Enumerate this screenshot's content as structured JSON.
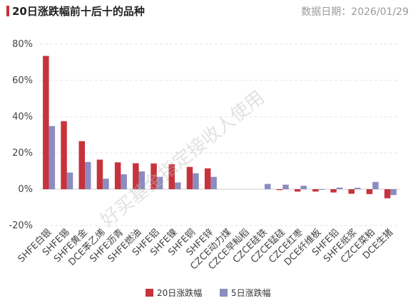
{
  "header": {
    "title": "20日涨跌幅前十后十的品种",
    "date_text": "数据日期：2026/01/29"
  },
  "watermark": "好买基金指定接收人使用",
  "colors": {
    "series_20d": "#c8323c",
    "series_5d": "#8c8cc0",
    "title_accent": "#c8323c"
  },
  "chart_data": {
    "type": "bar",
    "title": "20日涨跌幅前十后十的品种",
    "categories": [
      "SHFE白银",
      "SHFE锡",
      "SHFE黄金",
      "DCE苯乙烯",
      "SHFE沥青",
      "SHFE燃油",
      "SHFE铝",
      "SHFE镍",
      "SHFE铜",
      "SHFE锌",
      "CZCE动力煤",
      "CZCE早籼稻",
      "CZCE硅铁",
      "CZCE锰硅",
      "CZCE红枣",
      "DCE纤维板",
      "SHFE铅",
      "SHFE纸浆",
      "CZCE菜粕",
      "DCE生猪"
    ],
    "series": [
      {
        "name": "20日涨跌幅",
        "values": [
          73.5,
          37.5,
          26.5,
          16.3,
          14.8,
          14.3,
          14.2,
          13.8,
          12.3,
          11.5,
          0.0,
          0.0,
          0.0,
          -0.5,
          -1.3,
          -1.3,
          -1.8,
          -2.5,
          -2.7,
          -5.0
        ]
      },
      {
        "name": "5日涨跌幅",
        "values": [
          34.8,
          9.2,
          15.0,
          5.8,
          8.2,
          9.8,
          6.8,
          3.7,
          8.8,
          6.8,
          0.0,
          0.0,
          2.9,
          2.5,
          1.9,
          -0.1,
          0.9,
          0.8,
          4.0,
          -3.2
        ]
      }
    ],
    "y_ticks": [
      "80%",
      "60%",
      "40%",
      "20%",
      "0%",
      "-20%"
    ],
    "ylim": [
      -20,
      80
    ],
    "grid": true,
    "legend_position": "bottom-center"
  }
}
